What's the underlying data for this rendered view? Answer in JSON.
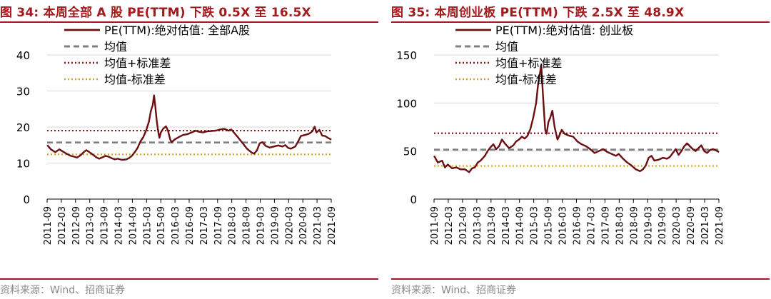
{
  "source_text": "资料来源：Wind、招商证券",
  "chart_data": [
    {
      "type": "line",
      "title": "图 34:  本周全部 A 股 PE(TTM) 下跌 0.5X 至 16.5X",
      "xlabel": "",
      "ylabel": "",
      "ylim": [
        0,
        40
      ],
      "yticks": [
        0,
        10,
        20,
        30,
        40
      ],
      "xticks": [
        "2011-09",
        "2012-03",
        "2012-09",
        "2013-03",
        "2013-09",
        "2014-03",
        "2014-09",
        "2015-03",
        "2015-09",
        "2016-03",
        "2016-09",
        "2017-03",
        "2017-09",
        "2018-03",
        "2018-09",
        "2019-03",
        "2019-09",
        "2020-03",
        "2020-09",
        "2021-03",
        "2021-09"
      ],
      "grid": true,
      "legend_position": "top-left",
      "colors": {
        "pe": "#6b0f12",
        "mean": "#7f7f7f",
        "upper": "#8b1a1a",
        "lower": "#d4a72c"
      },
      "series": [
        {
          "name": "PE(TTM):绝对估值: 全部A股",
          "style": "solid",
          "points": [
            [
              2011.67,
              15.0
            ],
            [
              2011.8,
              13.8
            ],
            [
              2011.95,
              13.0
            ],
            [
              2012.1,
              13.8
            ],
            [
              2012.2,
              13.3
            ],
            [
              2012.35,
              12.6
            ],
            [
              2012.5,
              12.0
            ],
            [
              2012.6,
              11.8
            ],
            [
              2012.72,
              11.5
            ],
            [
              2012.85,
              12.2
            ],
            [
              2012.95,
              13.0
            ],
            [
              2013.05,
              13.6
            ],
            [
              2013.12,
              13.2
            ],
            [
              2013.25,
              12.5
            ],
            [
              2013.4,
              11.6
            ],
            [
              2013.5,
              11.2
            ],
            [
              2013.62,
              11.6
            ],
            [
              2013.72,
              12.0
            ],
            [
              2013.85,
              11.7
            ],
            [
              2013.95,
              11.3
            ],
            [
              2014.05,
              11.0
            ],
            [
              2014.15,
              11.2
            ],
            [
              2014.3,
              10.9
            ],
            [
              2014.45,
              11.0
            ],
            [
              2014.55,
              11.4
            ],
            [
              2014.65,
              12.0
            ],
            [
              2014.75,
              13.0
            ],
            [
              2014.85,
              14.2
            ],
            [
              2014.95,
              16.0
            ],
            [
              2015.05,
              17.2
            ],
            [
              2015.15,
              19.0
            ],
            [
              2015.25,
              21.5
            ],
            [
              2015.32,
              24.5
            ],
            [
              2015.38,
              26.0
            ],
            [
              2015.43,
              28.8
            ],
            [
              2015.47,
              26.0
            ],
            [
              2015.52,
              22.0
            ],
            [
              2015.57,
              19.0
            ],
            [
              2015.62,
              17.0
            ],
            [
              2015.67,
              18.5
            ],
            [
              2015.75,
              19.5
            ],
            [
              2015.85,
              20.2
            ],
            [
              2015.92,
              19.0
            ],
            [
              2016.0,
              16.5
            ],
            [
              2016.05,
              15.8
            ],
            [
              2016.15,
              16.5
            ],
            [
              2016.3,
              17.2
            ],
            [
              2016.45,
              17.8
            ],
            [
              2016.6,
              18.0
            ],
            [
              2016.75,
              18.5
            ],
            [
              2016.9,
              19.0
            ],
            [
              2017.0,
              18.7
            ],
            [
              2017.15,
              18.5
            ],
            [
              2017.3,
              18.8
            ],
            [
              2017.45,
              18.9
            ],
            [
              2017.6,
              19.0
            ],
            [
              2017.75,
              19.3
            ],
            [
              2017.9,
              19.5
            ],
            [
              2018.05,
              19.0
            ],
            [
              2018.15,
              19.3
            ],
            [
              2018.25,
              18.4
            ],
            [
              2018.4,
              17.0
            ],
            [
              2018.55,
              15.5
            ],
            [
              2018.7,
              14.0
            ],
            [
              2018.85,
              13.0
            ],
            [
              2018.95,
              12.6
            ],
            [
              2019.05,
              13.5
            ],
            [
              2019.15,
              15.5
            ],
            [
              2019.25,
              15.8
            ],
            [
              2019.35,
              14.8
            ],
            [
              2019.5,
              14.3
            ],
            [
              2019.65,
              14.6
            ],
            [
              2019.8,
              14.9
            ],
            [
              2019.95,
              14.6
            ],
            [
              2020.05,
              15.0
            ],
            [
              2020.15,
              14.2
            ],
            [
              2020.25,
              14.0
            ],
            [
              2020.4,
              14.6
            ],
            [
              2020.5,
              16.0
            ],
            [
              2020.6,
              17.5
            ],
            [
              2020.75,
              17.8
            ],
            [
              2020.9,
              18.2
            ],
            [
              2021.0,
              18.8
            ],
            [
              2021.08,
              20.1
            ],
            [
              2021.15,
              18.5
            ],
            [
              2021.25,
              19.2
            ],
            [
              2021.35,
              17.6
            ],
            [
              2021.45,
              17.5
            ],
            [
              2021.55,
              17.0
            ],
            [
              2021.67,
              16.5
            ]
          ]
        },
        {
          "name": "均值",
          "style": "dashed",
          "value": 15.7
        },
        {
          "name": "均值+标准差",
          "style": "dotted",
          "value": 19.0
        },
        {
          "name": "均值-标准差",
          "style": "dotted",
          "value": 12.4
        }
      ]
    },
    {
      "type": "line",
      "title": "图 35:  本周创业板 PE(TTM) 下跌 2.5X 至 48.9X",
      "xlabel": "",
      "ylabel": "",
      "ylim": [
        0,
        150
      ],
      "yticks": [
        0,
        50,
        100,
        150
      ],
      "xticks": [
        "2011-09",
        "2012-03",
        "2012-09",
        "2013-03",
        "2013-09",
        "2014-03",
        "2014-09",
        "2015-03",
        "2015-09",
        "2016-03",
        "2016-09",
        "2017-03",
        "2017-09",
        "2018-03",
        "2018-09",
        "2019-03",
        "2019-09",
        "2020-03",
        "2020-09",
        "2021-03",
        "2021-09"
      ],
      "grid": true,
      "legend_position": "top-left",
      "colors": {
        "pe": "#6b0f12",
        "mean": "#7f7f7f",
        "upper": "#8b1a1a",
        "lower": "#d4a72c"
      },
      "series": [
        {
          "name": "PE(TTM):绝对估值: 创业板",
          "style": "solid",
          "points": [
            [
              2011.67,
              45
            ],
            [
              2011.8,
              38
            ],
            [
              2011.95,
              40
            ],
            [
              2012.05,
              33
            ],
            [
              2012.15,
              36
            ],
            [
              2012.3,
              32
            ],
            [
              2012.45,
              33
            ],
            [
              2012.6,
              31
            ],
            [
              2012.75,
              31
            ],
            [
              2012.9,
              28
            ],
            [
              2013.0,
              32
            ],
            [
              2013.1,
              33
            ],
            [
              2013.2,
              38
            ],
            [
              2013.3,
              40
            ],
            [
              2013.45,
              45
            ],
            [
              2013.55,
              50
            ],
            [
              2013.65,
              54
            ],
            [
              2013.75,
              57
            ],
            [
              2013.85,
              52
            ],
            [
              2013.95,
              55
            ],
            [
              2014.05,
              62
            ],
            [
              2014.15,
              58
            ],
            [
              2014.3,
              53
            ],
            [
              2014.45,
              56
            ],
            [
              2014.55,
              60
            ],
            [
              2014.65,
              62
            ],
            [
              2014.75,
              65
            ],
            [
              2014.85,
              63
            ],
            [
              2014.95,
              66
            ],
            [
              2015.05,
              73
            ],
            [
              2015.15,
              85
            ],
            [
              2015.25,
              100
            ],
            [
              2015.32,
              120
            ],
            [
              2015.38,
              130
            ],
            [
              2015.43,
              140
            ],
            [
              2015.47,
              118
            ],
            [
              2015.52,
              95
            ],
            [
              2015.57,
              72
            ],
            [
              2015.62,
              68
            ],
            [
              2015.68,
              80
            ],
            [
              2015.75,
              85
            ],
            [
              2015.82,
              92
            ],
            [
              2015.9,
              75
            ],
            [
              2016.0,
              62
            ],
            [
              2016.05,
              65
            ],
            [
              2016.15,
              72
            ],
            [
              2016.25,
              68
            ],
            [
              2016.4,
              66
            ],
            [
              2016.55,
              65
            ],
            [
              2016.7,
              60
            ],
            [
              2016.85,
              57
            ],
            [
              2017.0,
              55
            ],
            [
              2017.15,
              52
            ],
            [
              2017.3,
              48
            ],
            [
              2017.45,
              50
            ],
            [
              2017.6,
              52
            ],
            [
              2017.75,
              49
            ],
            [
              2017.9,
              47
            ],
            [
              2018.05,
              45
            ],
            [
              2018.15,
              47
            ],
            [
              2018.3,
              42
            ],
            [
              2018.45,
              38
            ],
            [
              2018.6,
              35
            ],
            [
              2018.75,
              31
            ],
            [
              2018.9,
              29
            ],
            [
              2019.0,
              31
            ],
            [
              2019.1,
              35
            ],
            [
              2019.2,
              43
            ],
            [
              2019.3,
              45
            ],
            [
              2019.4,
              40
            ],
            [
              2019.55,
              41
            ],
            [
              2019.7,
              43
            ],
            [
              2019.85,
              42
            ],
            [
              2019.95,
              44
            ],
            [
              2020.05,
              48
            ],
            [
              2020.15,
              52
            ],
            [
              2020.25,
              46
            ],
            [
              2020.35,
              50
            ],
            [
              2020.45,
              55
            ],
            [
              2020.55,
              58
            ],
            [
              2020.65,
              55
            ],
            [
              2020.75,
              52
            ],
            [
              2020.85,
              50
            ],
            [
              2020.95,
              53
            ],
            [
              2021.05,
              56
            ],
            [
              2021.15,
              50
            ],
            [
              2021.25,
              48
            ],
            [
              2021.35,
              51
            ],
            [
              2021.45,
              52
            ],
            [
              2021.55,
              51
            ],
            [
              2021.67,
              48.9
            ]
          ]
        },
        {
          "name": "均值",
          "style": "dashed",
          "value": 51.5
        },
        {
          "name": "均值+标准差",
          "style": "dotted",
          "value": 68.5
        },
        {
          "name": "均值-标准差",
          "style": "dotted",
          "value": 34.5
        }
      ]
    }
  ]
}
